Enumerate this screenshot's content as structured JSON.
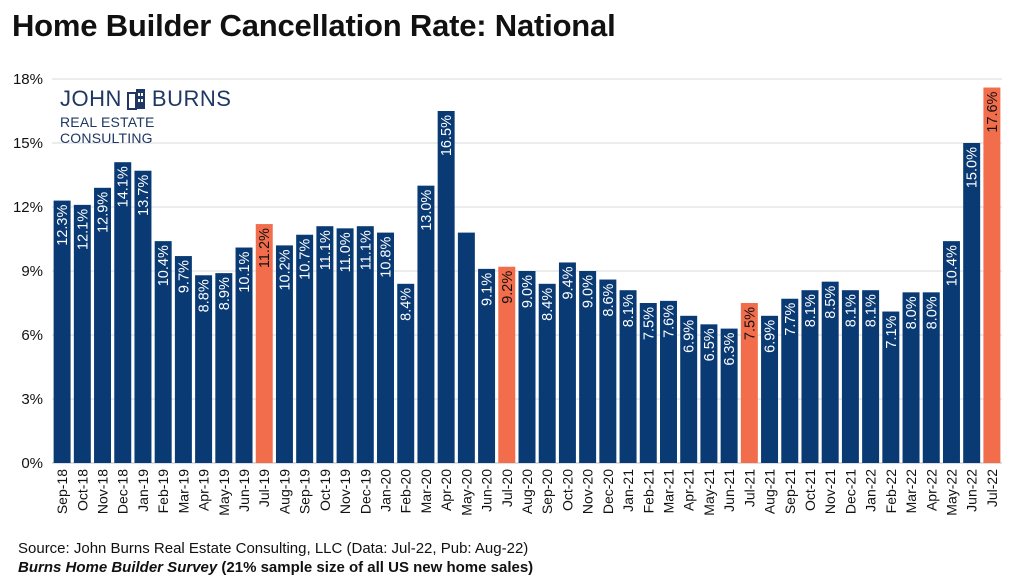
{
  "title": "Home Builder Cancellation Rate: National",
  "logo": {
    "name_left": "JOHN",
    "name_right": "BURNS",
    "subtitle": "REAL ESTATE CONSULTING"
  },
  "source": "Source: John Burns Real Estate Consulting, LLC (Data: Jul-22, Pub: Aug-22)",
  "survey_name": "Burns Home Builder Survey",
  "survey_note": " (21% sample size of all US new home sales)",
  "colors": {
    "bar": "#0a3a74",
    "highlight": "#f26d4c",
    "grid": "#d9d9d9"
  },
  "chart_data": {
    "type": "bar",
    "ylim": [
      0,
      18
    ],
    "yticks": [
      "0%",
      "3%",
      "6%",
      "9%",
      "12%",
      "15%",
      "18%"
    ],
    "ytick_values": [
      0,
      3,
      6,
      9,
      12,
      15,
      18
    ],
    "grid": true,
    "categories": [
      "Sep-18",
      "Oct-18",
      "Nov-18",
      "Dec-18",
      "Jan-19",
      "Feb-19",
      "Mar-19",
      "Apr-19",
      "May-19",
      "Jun-19",
      "Jul-19",
      "Aug-19",
      "Sep-19",
      "Oct-19",
      "Nov-19",
      "Dec-19",
      "Jan-20",
      "Feb-20",
      "Mar-20",
      "Apr-20",
      "May-20",
      "Jun-20",
      "Jul-20",
      "Aug-20",
      "Sep-20",
      "Oct-20",
      "Nov-20",
      "Dec-20",
      "Jan-21",
      "Feb-21",
      "Mar-21",
      "Apr-21",
      "May-21",
      "Jun-21",
      "Jul-21",
      "Aug-21",
      "Sep-21",
      "Oct-21",
      "Nov-21",
      "Dec-21",
      "Jan-22",
      "Feb-22",
      "Mar-22",
      "Apr-22",
      "May-22",
      "Jun-22",
      "Jul-22"
    ],
    "values": [
      12.3,
      12.1,
      12.9,
      14.1,
      13.7,
      10.4,
      9.7,
      8.8,
      8.9,
      10.1,
      11.2,
      10.2,
      10.7,
      11.1,
      11.0,
      11.1,
      10.8,
      8.4,
      13.0,
      16.5,
      10.8,
      9.1,
      9.2,
      9.0,
      8.4,
      9.4,
      9.0,
      8.6,
      8.1,
      7.5,
      7.6,
      6.9,
      6.5,
      6.3,
      7.5,
      6.9,
      7.7,
      8.1,
      8.5,
      8.1,
      8.1,
      7.1,
      8.0,
      8.0,
      10.4,
      15.0,
      17.6
    ],
    "labels": [
      "12.3%",
      "12.1%",
      "12.9%",
      "14.1%",
      "13.7%",
      "10.4%",
      "9.7%",
      "8.8%",
      "8.9%",
      "10.1%",
      "11.2%",
      "10.2%",
      "10.7%",
      "11.1%",
      "11.0%",
      "11.1%",
      "10.8%",
      "8.4%",
      "13.0%",
      "16.5%",
      "",
      "9.1%",
      "9.2%",
      "9.0%",
      "8.4%",
      "9.4%",
      "9.0%",
      "8.6%",
      "8.1%",
      "7.5%",
      "7.6%",
      "6.9%",
      "6.5%",
      "6.3%",
      "7.5%",
      "6.9%",
      "7.7%",
      "8.1%",
      "8.5%",
      "8.1%",
      "8.1%",
      "7.1%",
      "8.0%",
      "8.0%",
      "10.4%",
      "15.0%",
      "17.6%"
    ],
    "highlight_categories": [
      "Jul-19",
      "Jul-20",
      "Jul-21",
      "Jul-22"
    ]
  }
}
